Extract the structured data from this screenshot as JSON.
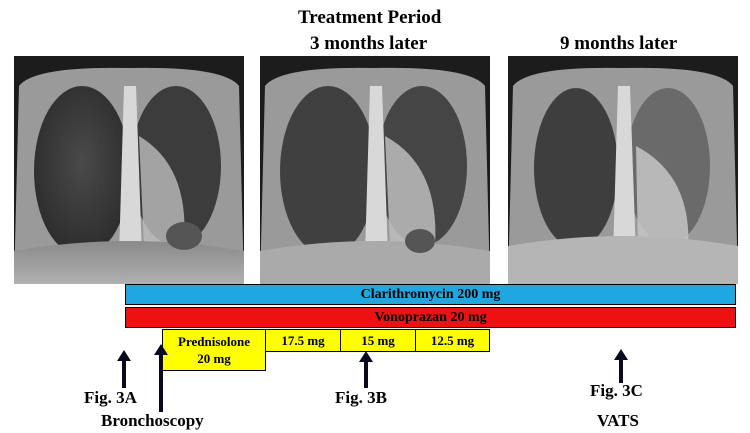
{
  "headings": {
    "treatment_period": "Treatment Period",
    "three_months": "3 months later",
    "nine_months": "9 months later"
  },
  "therapy_bars": {
    "clarithromycin": "Clarithromycin 200 mg",
    "vonoprazan": "Vonoprazan 20 mg"
  },
  "prednisolone_doses": {
    "first_line1": "Prednisolone",
    "first_line2": "20 mg",
    "second": "17.5 mg",
    "third": "15 mg",
    "fourth": "12.5 mg"
  },
  "event_labels": {
    "fig3a": "Fig. 3A",
    "bronchoscopy": "Bronchoscopy",
    "fig3b": "Fig. 3B",
    "fig3c": "Fig. 3C",
    "vats": "VATS"
  },
  "colors": {
    "clarithromycin_bar": "#1ea7e0",
    "vonoprazan_bar": "#ee1111",
    "prednisolone_box": "#ffff00"
  }
}
